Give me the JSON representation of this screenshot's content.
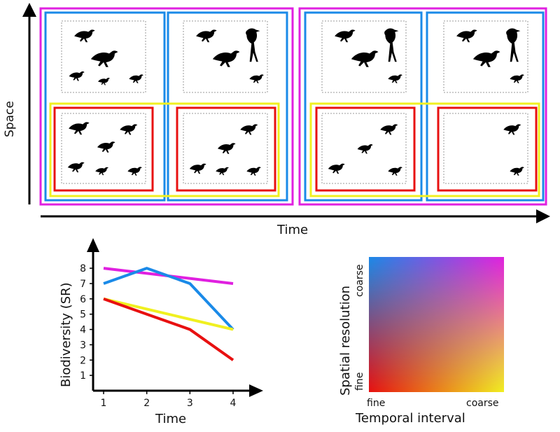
{
  "diagram": {
    "space_axis_label": "Space",
    "time_axis_label": "Time",
    "frame_colors": {
      "pink": "#e020e0",
      "blue": "#1a8ae8",
      "yellow": "#f0f020",
      "red": "#e81010",
      "gray": "#999999"
    },
    "bird_icon": "bird-silhouette-icon"
  },
  "gradient_panel": {
    "x_axis_label": "Temporal interval",
    "y_axis_label": "Spatial resolution",
    "x_fine": "fine",
    "x_coarse": "coarse",
    "y_fine": "fine",
    "y_coarse": "coarse",
    "corner_colors": {
      "fine_fine": "#e81010",
      "coarse_fine": "#f0f020",
      "fine_coarse": "#1a8ae8",
      "coarse_coarse": "#e020e0"
    }
  },
  "chart_data": {
    "type": "line",
    "title": "",
    "xlabel": "Time",
    "ylabel": "Biodiversity (SR)",
    "x": [
      1,
      2,
      3,
      4
    ],
    "xlim": [
      0.8,
      4.2
    ],
    "ylim": [
      0,
      8.6
    ],
    "yticks": [
      1,
      2,
      3,
      4,
      5,
      6,
      7,
      8
    ],
    "grid": false,
    "series": [
      {
        "name": "pink",
        "color": "#e020e0",
        "x": [
          1,
          4
        ],
        "values": [
          8,
          7
        ]
      },
      {
        "name": "blue",
        "color": "#1a8ae8",
        "x": [
          1,
          2,
          3,
          4
        ],
        "values": [
          7,
          8,
          7,
          4
        ]
      },
      {
        "name": "yellow",
        "color": "#f0f020",
        "x": [
          1,
          4
        ],
        "values": [
          6,
          4
        ]
      },
      {
        "name": "red",
        "color": "#e81010",
        "x": [
          1,
          2,
          3,
          4
        ],
        "values": [
          6,
          5,
          4,
          2
        ]
      }
    ]
  }
}
